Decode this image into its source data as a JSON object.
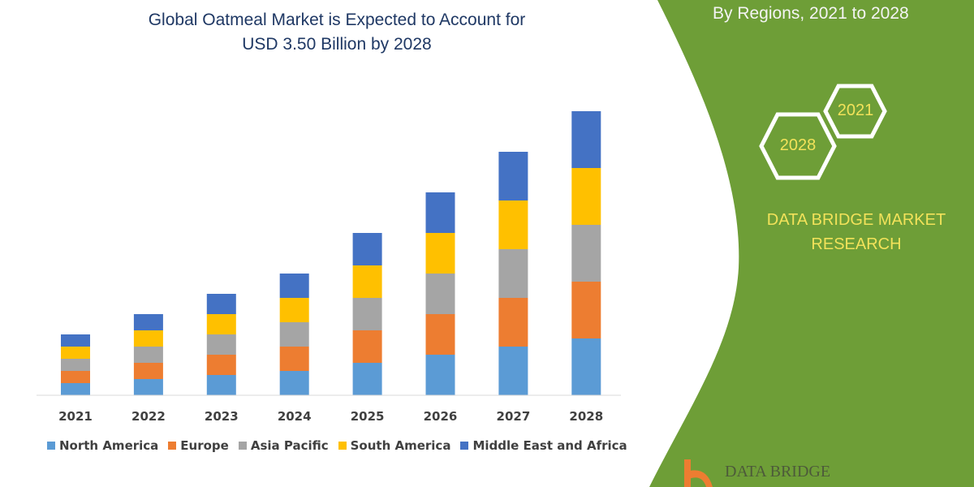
{
  "chart_data": {
    "type": "bar",
    "stacked": true,
    "title": "Global Oatmeal Market is Expected to Account for USD 3.50 Billion by 2028",
    "title_lines": [
      "Global Oatmeal Market is Expected to Account for",
      "USD 3.50 Billion by 2028"
    ],
    "categories": [
      "2021",
      "2022",
      "2023",
      "2024",
      "2025",
      "2026",
      "2027",
      "2028"
    ],
    "series": [
      {
        "name": "North America",
        "color": "#5B9BD5",
        "values": [
          1.5,
          2.0,
          2.5,
          3.0,
          4.0,
          5.0,
          6.0,
          7.0
        ]
      },
      {
        "name": "Europe",
        "color": "#ED7D31",
        "values": [
          1.5,
          2.0,
          2.5,
          3.0,
          4.0,
          5.0,
          6.0,
          7.0
        ]
      },
      {
        "name": "Asia Pacific",
        "color": "#A5A5A5",
        "values": [
          1.5,
          2.0,
          2.5,
          3.0,
          4.0,
          5.0,
          6.0,
          7.0
        ]
      },
      {
        "name": "South America",
        "color": "#FFC000",
        "values": [
          1.5,
          2.0,
          2.5,
          3.0,
          4.0,
          5.0,
          6.0,
          7.0
        ]
      },
      {
        "name": "Middle East and Africa",
        "color": "#4472C4",
        "values": [
          1.5,
          2.0,
          2.5,
          3.0,
          4.0,
          5.0,
          6.0,
          7.0
        ]
      }
    ],
    "y_axis_shown": false,
    "grid": false,
    "legend_position": "bottom"
  },
  "side_panel": {
    "subtitle": "By Regions, 2021 to 2028",
    "hex_left": "2028",
    "hex_right": "2021",
    "brand_line1": "DATA BRIDGE MARKET",
    "brand_line2": "RESEARCH",
    "logo_text": "DATA BRIDGE",
    "panel_color": "#6E9E37",
    "brand_text_color": "#F2E25A"
  }
}
